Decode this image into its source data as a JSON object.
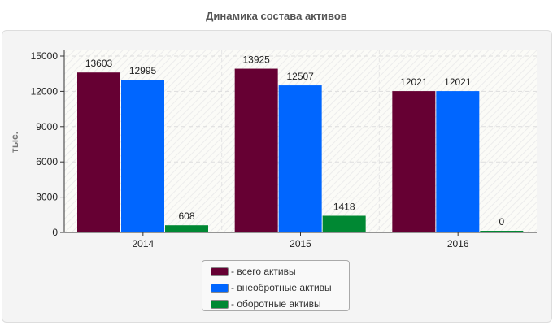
{
  "chart_data": {
    "type": "bar",
    "title": "Динамика состава активов",
    "ylabel": "тыс.",
    "xlabel": "",
    "categories": [
      "2014",
      "2015",
      "2016"
    ],
    "ylim": [
      0,
      15000
    ],
    "yticks": [
      0,
      3000,
      6000,
      9000,
      12000,
      15000
    ],
    "grid": true,
    "legend_position": "bottom",
    "series": [
      {
        "name": "- всего активы",
        "color": "#660033",
        "values": [
          13603,
          13925,
          12021
        ]
      },
      {
        "name": "- внеобротные активы",
        "color": "#0066ff",
        "values": [
          12995,
          12507,
          12021
        ]
      },
      {
        "name": "- оборотные активы",
        "color": "#008833",
        "values": [
          608,
          1418,
          0
        ]
      }
    ]
  }
}
